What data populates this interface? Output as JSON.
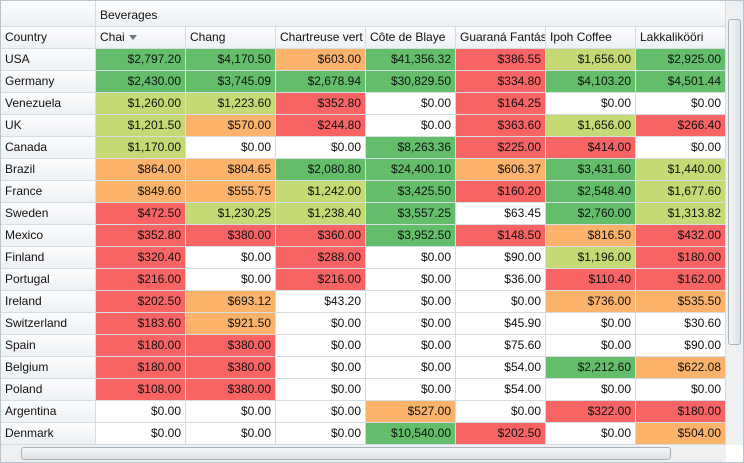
{
  "column_group": "Beverages",
  "row_header": "Country",
  "columns": [
    "Chai",
    "Chang",
    "Chartreuse vert",
    "Côte de Blaye",
    "Guaraná Fantás",
    "Ipoh Coffee",
    "Lakkalikööri"
  ],
  "palette": {
    "g": "#63bd6a",
    "l": "#c5d974",
    "o": "#fbb36c",
    "r": "#f86464",
    "w": "#ffffff"
  },
  "rows": [
    {
      "label": "USA",
      "cells": [
        "$2,797.20",
        "$4,170.50",
        "$603.00",
        "$41,356.32",
        "$386.55",
        "$1,656.00",
        "$2,925.00"
      ],
      "shades": [
        "g",
        "g",
        "o",
        "g",
        "r",
        "l",
        "g"
      ]
    },
    {
      "label": "Germany",
      "cells": [
        "$2,430.00",
        "$3,745.09",
        "$2,678.94",
        "$30,829.50",
        "$334.80",
        "$4,103.20",
        "$4,501.44"
      ],
      "shades": [
        "g",
        "g",
        "g",
        "g",
        "r",
        "g",
        "g"
      ]
    },
    {
      "label": "Venezuela",
      "cells": [
        "$1,260.00",
        "$1,223.60",
        "$352.80",
        "$0.00",
        "$164.25",
        "$0.00",
        "$0.00"
      ],
      "shades": [
        "l",
        "l",
        "r",
        "w",
        "r",
        "w",
        "w"
      ]
    },
    {
      "label": "UK",
      "cells": [
        "$1,201.50",
        "$570.00",
        "$244.80",
        "$0.00",
        "$363.60",
        "$1,656.00",
        "$266.40"
      ],
      "shades": [
        "l",
        "o",
        "r",
        "w",
        "r",
        "l",
        "r"
      ]
    },
    {
      "label": "Canada",
      "cells": [
        "$1,170.00",
        "$0.00",
        "$0.00",
        "$8,263.36",
        "$225.00",
        "$414.00",
        "$0.00"
      ],
      "shades": [
        "l",
        "w",
        "w",
        "g",
        "r",
        "r",
        "w"
      ]
    },
    {
      "label": "Brazil",
      "cells": [
        "$864.00",
        "$804.65",
        "$2,080.80",
        "$24,400.10",
        "$606.37",
        "$3,431.60",
        "$1,440.00"
      ],
      "shades": [
        "o",
        "o",
        "g",
        "g",
        "o",
        "g",
        "l"
      ]
    },
    {
      "label": "France",
      "cells": [
        "$849.60",
        "$555.75",
        "$1,242.00",
        "$3,425.50",
        "$160.20",
        "$2,548.40",
        "$1,677.60"
      ],
      "shades": [
        "o",
        "o",
        "l",
        "g",
        "r",
        "g",
        "l"
      ]
    },
    {
      "label": "Sweden",
      "cells": [
        "$472.50",
        "$1,230.25",
        "$1,238.40",
        "$3,557.25",
        "$63.45",
        "$2,760.00",
        "$1,313.82"
      ],
      "shades": [
        "r",
        "l",
        "l",
        "g",
        "w",
        "g",
        "l"
      ]
    },
    {
      "label": "Mexico",
      "cells": [
        "$352.80",
        "$380.00",
        "$360.00",
        "$3,952.50",
        "$148.50",
        "$816.50",
        "$432.00"
      ],
      "shades": [
        "r",
        "r",
        "r",
        "g",
        "r",
        "o",
        "r"
      ]
    },
    {
      "label": "Finland",
      "cells": [
        "$320.40",
        "$0.00",
        "$288.00",
        "$0.00",
        "$90.00",
        "$1,196.00",
        "$180.00"
      ],
      "shades": [
        "r",
        "w",
        "r",
        "w",
        "w",
        "l",
        "r"
      ]
    },
    {
      "label": "Portugal",
      "cells": [
        "$216.00",
        "$0.00",
        "$216.00",
        "$0.00",
        "$36.00",
        "$110.40",
        "$162.00"
      ],
      "shades": [
        "r",
        "w",
        "r",
        "w",
        "w",
        "r",
        "r"
      ]
    },
    {
      "label": "Ireland",
      "cells": [
        "$202.50",
        "$693.12",
        "$43.20",
        "$0.00",
        "$0.00",
        "$736.00",
        "$535.50"
      ],
      "shades": [
        "r",
        "o",
        "w",
        "w",
        "w",
        "o",
        "o"
      ]
    },
    {
      "label": "Switzerland",
      "cells": [
        "$183.60",
        "$921.50",
        "$0.00",
        "$0.00",
        "$45.90",
        "$0.00",
        "$30.60"
      ],
      "shades": [
        "r",
        "o",
        "w",
        "w",
        "w",
        "w",
        "w"
      ]
    },
    {
      "label": "Spain",
      "cells": [
        "$180.00",
        "$380.00",
        "$0.00",
        "$0.00",
        "$75.60",
        "$0.00",
        "$90.00"
      ],
      "shades": [
        "r",
        "r",
        "w",
        "w",
        "w",
        "w",
        "w"
      ]
    },
    {
      "label": "Belgium",
      "cells": [
        "$180.00",
        "$380.00",
        "$0.00",
        "$0.00",
        "$54.00",
        "$2,212.60",
        "$622.08"
      ],
      "shades": [
        "r",
        "r",
        "w",
        "w",
        "w",
        "g",
        "o"
      ]
    },
    {
      "label": "Poland",
      "cells": [
        "$108.00",
        "$380.00",
        "$0.00",
        "$0.00",
        "$54.00",
        "$0.00",
        "$0.00"
      ],
      "shades": [
        "r",
        "r",
        "w",
        "w",
        "w",
        "w",
        "w"
      ]
    },
    {
      "label": "Argentina",
      "cells": [
        "$0.00",
        "$0.00",
        "$0.00",
        "$527.00",
        "$0.00",
        "$322.00",
        "$180.00"
      ],
      "shades": [
        "w",
        "w",
        "w",
        "o",
        "w",
        "r",
        "r"
      ]
    },
    {
      "label": "Denmark",
      "cells": [
        "$0.00",
        "$0.00",
        "$0.00",
        "$10,540.00",
        "$202.50",
        "$0.00",
        "$504.00"
      ],
      "shades": [
        "w",
        "w",
        "w",
        "g",
        "r",
        "w",
        "o"
      ]
    }
  ]
}
